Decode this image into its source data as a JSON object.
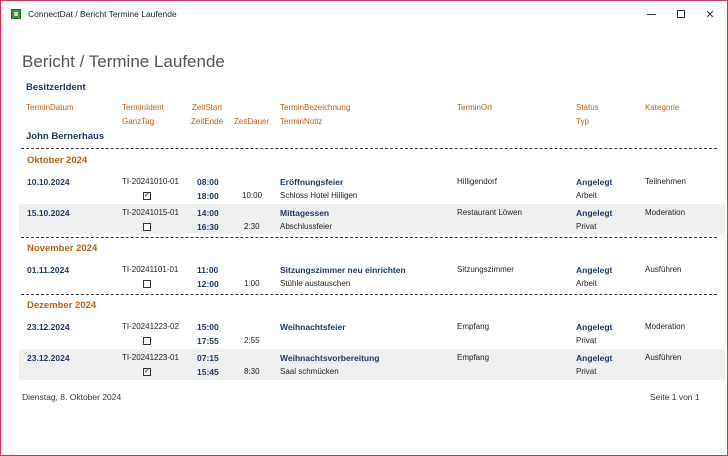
{
  "window": {
    "title": "ConnectDat / Bericht Termine Laufende"
  },
  "report": {
    "title": "Bericht / Termine Laufende",
    "group_header": "BesitzerIdent",
    "columns": {
      "termin_datum": "TerminDatum",
      "termin_ident": "TerminIdent",
      "ganz_tag": "GanzTag",
      "zeit_start": "ZeitStart",
      "zeit_ende": "ZeitEnde",
      "zeit_dauer": "ZeitDauer",
      "termin_bezeichnung": "TerminBezeichnung",
      "termin_notiz": "TerminNotiz",
      "termin_ort": "TerminOrt",
      "status": "Status",
      "typ": "Typ",
      "kategorie": "Kategorie"
    },
    "owner": "John Bernerhaus",
    "months": [
      {
        "name": "Oktober 2024",
        "rows": [
          {
            "datum": "10.10.2024",
            "ident": "TI-20241010-01",
            "ganztag": true,
            "start": "08:00",
            "ende": "18:00",
            "dauer": "10:00",
            "bezeichnung": "Eröffnungsfeier",
            "notiz": "Schloss Hotel Hilligen",
            "ort": "Hilligendorf",
            "status": "Angelegt",
            "typ": "Arbeit",
            "kategorie": "Teilnehmen"
          },
          {
            "datum": "15.10.2024",
            "ident": "TI-20241015-01",
            "ganztag": false,
            "start": "14:00",
            "ende": "16:30",
            "dauer": "2:30",
            "bezeichnung": "Mittagessen",
            "notiz": "Abschlussfeier",
            "ort": "Restaurant Löwen",
            "status": "Angelegt",
            "typ": "Privat",
            "kategorie": "Moderation"
          }
        ]
      },
      {
        "name": "November 2024",
        "rows": [
          {
            "datum": "01.11.2024",
            "ident": "TI-20241101-01",
            "ganztag": false,
            "start": "11:00",
            "ende": "12:00",
            "dauer": "1:00",
            "bezeichnung": "Sitzungszimmer neu einrichten",
            "notiz": "Stühle austauschen",
            "ort": "Sitzungszimmer",
            "status": "Angelegt",
            "typ": "Arbeit",
            "kategorie": "Ausführen"
          }
        ]
      },
      {
        "name": "Dezember 2024",
        "rows": [
          {
            "datum": "23.12.2024",
            "ident": "TI-20241223-02",
            "ganztag": false,
            "start": "15:00",
            "ende": "17:55",
            "dauer": "2:55",
            "bezeichnung": "Weihnachtsfeier",
            "notiz": "",
            "ort": "Empfang",
            "status": "Angelegt",
            "typ": "Privat",
            "kategorie": "Moderation"
          },
          {
            "datum": "23.12.2024",
            "ident": "TI-20241223-01",
            "ganztag": true,
            "start": "07:15",
            "ende": "15:45",
            "dauer": "8:30",
            "bezeichnung": "Weihnachtsvorbereitung",
            "notiz": "Saal schmücken",
            "ort": "Empfang",
            "status": "Angelegt",
            "typ": "Privat",
            "kategorie": "Ausführen"
          }
        ]
      }
    ],
    "footer": {
      "date": "Dienstag, 8. Oktober 2024",
      "page": "Seite 1 von 1"
    }
  }
}
